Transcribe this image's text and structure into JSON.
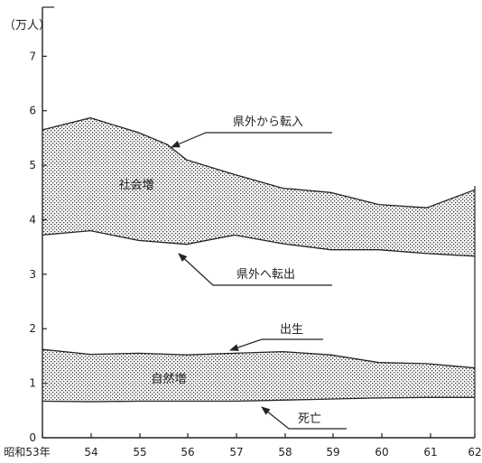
{
  "chart_data": {
    "type": "area",
    "y_unit_label": "（万人）",
    "x_tick_labels": [
      "昭和53年",
      "54",
      "55",
      "56",
      "57",
      "58",
      "59",
      "60",
      "61",
      "62"
    ],
    "y_tick_labels": [
      "0",
      "1",
      "2",
      "3",
      "4",
      "5",
      "6",
      "7"
    ],
    "ylim": [
      0,
      7.9
    ],
    "series": [
      {
        "name": "県外から転入",
        "x": [
          53,
          54,
          55,
          55.6,
          56,
          57,
          58,
          59,
          60,
          61,
          62
        ],
        "values": [
          5.65,
          5.87,
          5.6,
          5.38,
          5.1,
          4.83,
          4.58,
          4.5,
          4.28,
          4.22,
          4.55
        ]
      },
      {
        "name": "県外へ転出",
        "x": [
          53,
          54,
          55,
          56,
          57,
          58,
          59,
          60,
          61,
          62
        ],
        "values": [
          3.72,
          3.8,
          3.62,
          3.55,
          3.72,
          3.56,
          3.45,
          3.45,
          3.38,
          3.33
        ]
      },
      {
        "name": "出生",
        "x": [
          53,
          54,
          55,
          56,
          57,
          58,
          59,
          60,
          61,
          62
        ],
        "values": [
          1.62,
          1.53,
          1.55,
          1.52,
          1.55,
          1.58,
          1.52,
          1.38,
          1.36,
          1.28
        ]
      },
      {
        "name": "死亡",
        "x": [
          53,
          54,
          55,
          56,
          57,
          58,
          59,
          60,
          61,
          62
        ],
        "values": [
          0.67,
          0.66,
          0.67,
          0.67,
          0.67,
          0.69,
          0.71,
          0.73,
          0.74,
          0.74
        ]
      }
    ],
    "annotations": {
      "social_increase": "社会増",
      "natural_increase": "自然増",
      "in_migration": "県外から転入",
      "out_migration": "県外へ転出",
      "births": "出生",
      "deaths": "死亡"
    }
  }
}
